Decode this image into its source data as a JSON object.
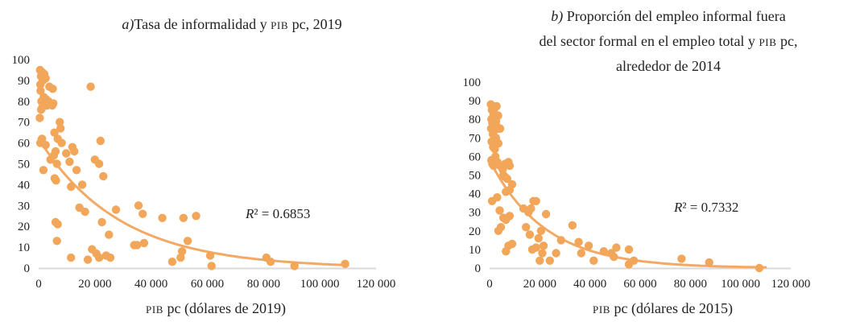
{
  "colors": {
    "marker": "#F2A65A",
    "trend": "#F3A965",
    "axis": "#D9D9D9",
    "text": "#222222"
  },
  "chart_data": [
    {
      "type": "scatter",
      "title_letter": "a)",
      "title_lines": [
        [
          "Tasa de informalidad y ",
          "PIB",
          " pc, 2019"
        ]
      ],
      "xlabel": [
        "PIB",
        " pc (dólares de 2019)"
      ],
      "ylabel": "",
      "xlim": [
        0,
        120000
      ],
      "ylim": [
        0,
        100
      ],
      "xticks": [
        0,
        20000,
        40000,
        60000,
        80000,
        100000,
        120000
      ],
      "xtick_labels": [
        "0",
        "20 000",
        "40 000",
        "60 000",
        "80 000",
        "100 000",
        "120 000"
      ],
      "yticks": [
        0,
        10,
        20,
        30,
        40,
        50,
        60,
        70,
        80,
        90,
        100
      ],
      "ytick_labels": [
        "0",
        "10",
        "20",
        "30",
        "40",
        "50",
        "60",
        "70",
        "80",
        "90",
        "100"
      ],
      "r2_label": "R² = 0.6853",
      "r2_parts": [
        "R",
        "² = 0.6853"
      ],
      "trend": {
        "model": "exponential",
        "a": 62,
        "b": -3.45e-05
      },
      "points": [
        [
          500,
          95
        ],
        [
          800,
          92
        ],
        [
          1200,
          94
        ],
        [
          600,
          88
        ],
        [
          1500,
          90
        ],
        [
          2000,
          93
        ],
        [
          2500,
          91
        ],
        [
          700,
          85
        ],
        [
          1000,
          80
        ],
        [
          1800,
          82
        ],
        [
          2200,
          79
        ],
        [
          3000,
          78
        ],
        [
          1300,
          77
        ],
        [
          2600,
          81
        ],
        [
          3500,
          80
        ],
        [
          4200,
          79
        ],
        [
          900,
          76
        ],
        [
          4800,
          78
        ],
        [
          5200,
          79
        ],
        [
          3800,
          87
        ],
        [
          5000,
          86
        ],
        [
          400,
          72
        ],
        [
          1200,
          62
        ],
        [
          600,
          60
        ],
        [
          2500,
          59
        ],
        [
          1700,
          47
        ],
        [
          4200,
          52
        ],
        [
          5600,
          65
        ],
        [
          6800,
          62
        ],
        [
          7500,
          70
        ],
        [
          7800,
          67
        ],
        [
          6000,
          56
        ],
        [
          5400,
          54
        ],
        [
          6500,
          50
        ],
        [
          5700,
          43
        ],
        [
          6200,
          42
        ],
        [
          8200,
          60
        ],
        [
          9800,
          55
        ],
        [
          11000,
          51
        ],
        [
          12000,
          58
        ],
        [
          12700,
          56
        ],
        [
          11500,
          39
        ],
        [
          13500,
          47
        ],
        [
          14500,
          29
        ],
        [
          15500,
          40
        ],
        [
          16500,
          27
        ],
        [
          18500,
          87
        ],
        [
          20000,
          52
        ],
        [
          21500,
          50
        ],
        [
          22000,
          61
        ],
        [
          23000,
          44
        ],
        [
          22500,
          22
        ],
        [
          25000,
          16
        ],
        [
          19000,
          9
        ],
        [
          20500,
          7
        ],
        [
          21500,
          5
        ],
        [
          17500,
          4
        ],
        [
          24000,
          6
        ],
        [
          25500,
          5
        ],
        [
          27500,
          28
        ],
        [
          6000,
          22
        ],
        [
          6800,
          21
        ],
        [
          6500,
          13
        ],
        [
          11500,
          5
        ],
        [
          35500,
          30
        ],
        [
          37000,
          26
        ],
        [
          35000,
          11
        ],
        [
          34000,
          11
        ],
        [
          37500,
          12
        ],
        [
          44000,
          24
        ],
        [
          51500,
          24
        ],
        [
          56000,
          25
        ],
        [
          53000,
          13
        ],
        [
          51000,
          8
        ],
        [
          50500,
          5
        ],
        [
          47500,
          3
        ],
        [
          61000,
          6
        ],
        [
          61500,
          1
        ],
        [
          81000,
          5
        ],
        [
          82500,
          3
        ],
        [
          91000,
          1
        ],
        [
          109000,
          2
        ]
      ]
    },
    {
      "type": "scatter",
      "title_letter": "b)",
      "title_lines": [
        [
          "Proporción del empleo informal fuera"
        ],
        [
          "del sector formal en el empleo total y ",
          "PIB",
          " pc,"
        ],
        [
          "alrededor de 2014"
        ]
      ],
      "xlabel": [
        "PIB",
        " pc (dólares de 2015)"
      ],
      "ylabel": "",
      "xlim": [
        0,
        120000
      ],
      "ylim": [
        0,
        100
      ],
      "xticks": [
        0,
        20000,
        40000,
        60000,
        80000,
        100000,
        120000
      ],
      "xtick_labels": [
        "0",
        "20 000",
        "40 000",
        "60 000",
        "80 000",
        "100 000",
        "120 000"
      ],
      "yticks": [
        0,
        10,
        20,
        30,
        40,
        50,
        60,
        70,
        80,
        90,
        100
      ],
      "ytick_labels": [
        "0",
        "10",
        "20",
        "30",
        "40",
        "50",
        "60",
        "70",
        "80",
        "90",
        "100"
      ],
      "r2_label": "R² = 0.7332",
      "r2_parts": [
        "R",
        "² = 0.7332"
      ],
      "trend": {
        "model": "exponential",
        "a": 58,
        "b": -4.55e-05
      },
      "points": [
        [
          500,
          88
        ],
        [
          900,
          85
        ],
        [
          1200,
          87
        ],
        [
          1600,
          84
        ],
        [
          2000,
          86
        ],
        [
          2800,
          87
        ],
        [
          3400,
          82
        ],
        [
          700,
          80
        ],
        [
          1100,
          78
        ],
        [
          1500,
          82
        ],
        [
          2100,
          81
        ],
        [
          2600,
          79
        ],
        [
          3000,
          76
        ],
        [
          600,
          75
        ],
        [
          1300,
          72
        ],
        [
          1900,
          74
        ],
        [
          2500,
          70
        ],
        [
          3600,
          75
        ],
        [
          4200,
          75
        ],
        [
          800,
          68
        ],
        [
          1400,
          65
        ],
        [
          2100,
          64
        ],
        [
          2800,
          68
        ],
        [
          3500,
          67
        ],
        [
          700,
          58
        ],
        [
          1100,
          56
        ],
        [
          1600,
          55
        ],
        [
          2300,
          60
        ],
        [
          3100,
          57
        ],
        [
          4200,
          55
        ],
        [
          5200,
          53
        ],
        [
          6200,
          56
        ],
        [
          7500,
          57
        ],
        [
          8000,
          55
        ],
        [
          5500,
          50
        ],
        [
          6200,
          49
        ],
        [
          7000,
          48
        ],
        [
          9000,
          45
        ],
        [
          6500,
          41
        ],
        [
          8000,
          42
        ],
        [
          1000,
          36
        ],
        [
          3000,
          38
        ],
        [
          4000,
          31
        ],
        [
          5500,
          27
        ],
        [
          6500,
          26
        ],
        [
          8000,
          28
        ],
        [
          3500,
          20
        ],
        [
          4500,
          22
        ],
        [
          7500,
          12
        ],
        [
          9000,
          13
        ],
        [
          6500,
          9
        ],
        [
          13500,
          32
        ],
        [
          15500,
          30
        ],
        [
          16500,
          32
        ],
        [
          17500,
          36
        ],
        [
          18500,
          36
        ],
        [
          14500,
          22
        ],
        [
          16000,
          18
        ],
        [
          17000,
          10
        ],
        [
          18500,
          11
        ],
        [
          19500,
          16
        ],
        [
          20500,
          20
        ],
        [
          21500,
          12
        ],
        [
          22500,
          29
        ],
        [
          21000,
          8
        ],
        [
          20000,
          4
        ],
        [
          24000,
          4
        ],
        [
          26500,
          8
        ],
        [
          28500,
          15
        ],
        [
          33000,
          23
        ],
        [
          35500,
          14
        ],
        [
          36500,
          8
        ],
        [
          39500,
          12
        ],
        [
          41500,
          4
        ],
        [
          45500,
          9
        ],
        [
          48500,
          8
        ],
        [
          50500,
          11
        ],
        [
          49500,
          6
        ],
        [
          55500,
          10
        ],
        [
          57500,
          4
        ],
        [
          55500,
          2
        ],
        [
          76500,
          5
        ],
        [
          87500,
          3
        ],
        [
          107500,
          0
        ]
      ]
    }
  ]
}
